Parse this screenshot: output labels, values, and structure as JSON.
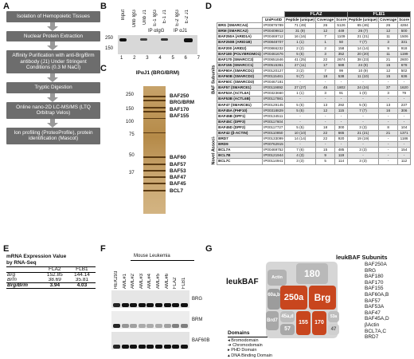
{
  "panels": {
    "A": "A",
    "B": "B",
    "C": "C",
    "D": "D",
    "E": "E",
    "F": "F",
    "G": "G"
  },
  "flow": {
    "steps": [
      "Isolation of Hemopoietic Tissues",
      "Nuclear Protein Extraction",
      "Affinity Purification with anti-Brg/Brm antibody (J1) Under Stringent Conditions (0.3 M NaCl)",
      "Tryptic Digestion",
      "Online nano-2D LC-MS/MS (LTQ Orbitrap Velos)",
      "Ion profiling (ProteoProfile), protein identification (Mascot)"
    ]
  },
  "blotB": {
    "lanes": [
      "Input",
      "Unb IgG",
      "Unb J1",
      "E-1 IgG",
      "E-1 J1",
      "E-2 IgG",
      "E-2 J1"
    ],
    "groups": [
      "IP αIgG",
      "IP αJ1"
    ],
    "markers": [
      "250",
      "150"
    ],
    "lane_numbers": [
      "1",
      "2",
      "3",
      "4",
      "5",
      "6",
      "7"
    ]
  },
  "gelC": {
    "title": "IPαJ1 (BRG/BRM)",
    "markers": [
      "250",
      "150",
      "100",
      "75",
      "50",
      "37"
    ],
    "bands": [
      "BAF250",
      "BRG/BRM",
      "BAF170",
      "BAF155",
      "BAF60",
      "BAF57",
      "BAF53",
      "BAF47",
      "BAF45",
      "BCL7"
    ]
  },
  "tableD": {
    "groups": [
      "FLA2",
      "FLB1"
    ],
    "columns": [
      "",
      "UniProtID",
      "Peptide (unique)",
      "Coverage",
      "Score",
      "Peptide (unique)",
      "Coverage",
      "Score"
    ],
    "sections": [
      "BAF Subunits",
      "Novel Associated Factors"
    ],
    "rows": [
      [
        "BRG (SMARCA4)",
        "IP00875789",
        "71 (49)",
        "26",
        "5126",
        "65 (46)",
        "26",
        "4284"
      ],
      [
        "BRM (SMARCA2)",
        "IP00409812",
        "31 (9)",
        "12",
        "449",
        "26 (7)",
        "12",
        "500"
      ],
      [
        "BAF250A (ARID1A)",
        "IP00469712",
        "16 (16)",
        "7",
        "1109",
        "21 (21)",
        "11",
        "1506"
      ],
      [
        "BAF250B (ARID1B)",
        "IP00848707",
        "1 (1)",
        "1",
        "50",
        "7 (7)",
        "3",
        "331"
      ],
      [
        "BAF200 (ARID2)",
        "IP00866232",
        "2 (2)",
        "2",
        "158",
        "14 (14)",
        "9",
        "918"
      ],
      [
        "BAF180 (POLYBROMO1)",
        "IP00461676",
        "5 (5)",
        "3",
        "352",
        "20 (20)",
        "11",
        "1199"
      ],
      [
        "BAF170 (SMARCC2)",
        "IP00651846",
        "41 (25)",
        "22",
        "2674",
        "38 (23)",
        "21",
        "2600"
      ],
      [
        "BAF155 (SMARCC1)",
        "IP00515361",
        "27 (11)",
        "17",
        "588",
        "24 (9)",
        "15",
        "678"
      ],
      [
        "BAF60A (SMARCD1)",
        "IP00120127",
        "3 (2)",
        "7",
        "99",
        "10 (9)",
        "12",
        "502"
      ],
      [
        "BAF60B (SMARCD2)",
        "IP00115461",
        "9 (7)",
        "18",
        "538",
        "11 (10)",
        "15",
        "636"
      ],
      [
        "BAF60C (SMARCD3)",
        "IP00467181",
        "-",
        "-",
        "-",
        "-",
        "-",
        "-"
      ],
      [
        "BAF57 (SMARCE1)",
        "IP00119892",
        "27 (27)",
        "45",
        "1802",
        "24 (24)",
        "37",
        "1620"
      ],
      [
        "BAF53A (ACTL6A)",
        "IP00323660",
        "1 (1)",
        "3",
        "91",
        "1 (0)",
        "3",
        "79"
      ],
      [
        "BAF53B (ACTL6B)",
        "IP00117981",
        "-",
        "-",
        "-",
        "-",
        "-",
        "-"
      ],
      [
        "BAF47 (SMARCB1)",
        "IP00129145",
        "5 (5)",
        "13",
        "292",
        "5 (5)",
        "13",
        "237"
      ],
      [
        "BAF45A (PHF10)",
        "IP00318829",
        "5 (5)",
        "12",
        "115",
        "7 (7)",
        "16",
        "306"
      ],
      [
        "BAF45B (DPF1)",
        "IP00134511",
        "-",
        "-",
        "-",
        "-",
        "-",
        "-"
      ],
      [
        "BAF45C (DPF3)",
        "IP00117604",
        "-",
        "-",
        "-",
        "-",
        "-",
        "-"
      ],
      [
        "BAF45D (DPF2)",
        "IP00117727",
        "5 (5)",
        "18",
        "300",
        "3 (3)",
        "8",
        "104"
      ],
      [
        "BAF42 (β-ACTIN)",
        "IP00110850",
        "10 (10)",
        "22",
        "665",
        "21 (21)",
        "21",
        "1371"
      ],
      [
        "BRD7",
        "IP00133099",
        "14 (14)",
        "22",
        "920",
        "19 (19)",
        "-",
        "1186"
      ],
      [
        "BRD9",
        "IP00762915",
        "-",
        "-",
        "-",
        "-",
        "-",
        "-"
      ],
      [
        "BCL7A",
        "IP00469752",
        "7 (6)",
        "15",
        "485",
        "3 (3)",
        "-",
        "154"
      ],
      [
        "BCL7B",
        "IP00121944",
        "4 (3)",
        "9",
        "119",
        "-",
        "-",
        "-"
      ],
      [
        "BCL7C",
        "IP00114941",
        "3 (3)",
        "5",
        "114",
        "3 (3)",
        "-",
        "112"
      ]
    ]
  },
  "tableE": {
    "title": "mRNA Expression Value by RNA-Seq",
    "columns": [
      "",
      "FLA2",
      "FLB1"
    ],
    "rows": [
      [
        "Brg",
        "152.85",
        "144.14"
      ],
      [
        "Brm",
        "38.69",
        "35.81"
      ],
      [
        "Brg/Brm",
        "3.94",
        "4.03"
      ]
    ]
  },
  "blotF": {
    "group": "Mouse Leukemia",
    "lanes": [
      "HEK293",
      "AML#1",
      "AML#2",
      "AML#3",
      "AML#4",
      "AML#5",
      "AML#6",
      "FLA2",
      "FLB1"
    ],
    "rows": [
      "BRG",
      "BRM",
      "BAF60B"
    ]
  },
  "panelG": {
    "title": "leukBAF",
    "subtitle": "leukBAF Subunits",
    "pieces": [
      "180",
      "250a",
      "Brg",
      "60a,b",
      "Brd7",
      "45a,d",
      "57",
      "155",
      "170",
      "53a",
      "Actin",
      "47"
    ],
    "subunits": [
      "BAF250A",
      "BRG",
      "BAF180",
      "BAF170",
      "BAF155",
      "BAF60A,B",
      "BAF57",
      "BAF53A",
      "BAF47",
      "BAF45A,D",
      "βActin",
      "BCL7A,C",
      "BRD7"
    ],
    "domains_title": "Domains",
    "domains": [
      "Bromodomain",
      "Chromodomain",
      "PHD Domain",
      "DNA Binding Domain"
    ],
    "colors": {
      "brg": "#c8461e",
      "grey": "#a8a8a8",
      "light": "#cfcfcf"
    }
  }
}
